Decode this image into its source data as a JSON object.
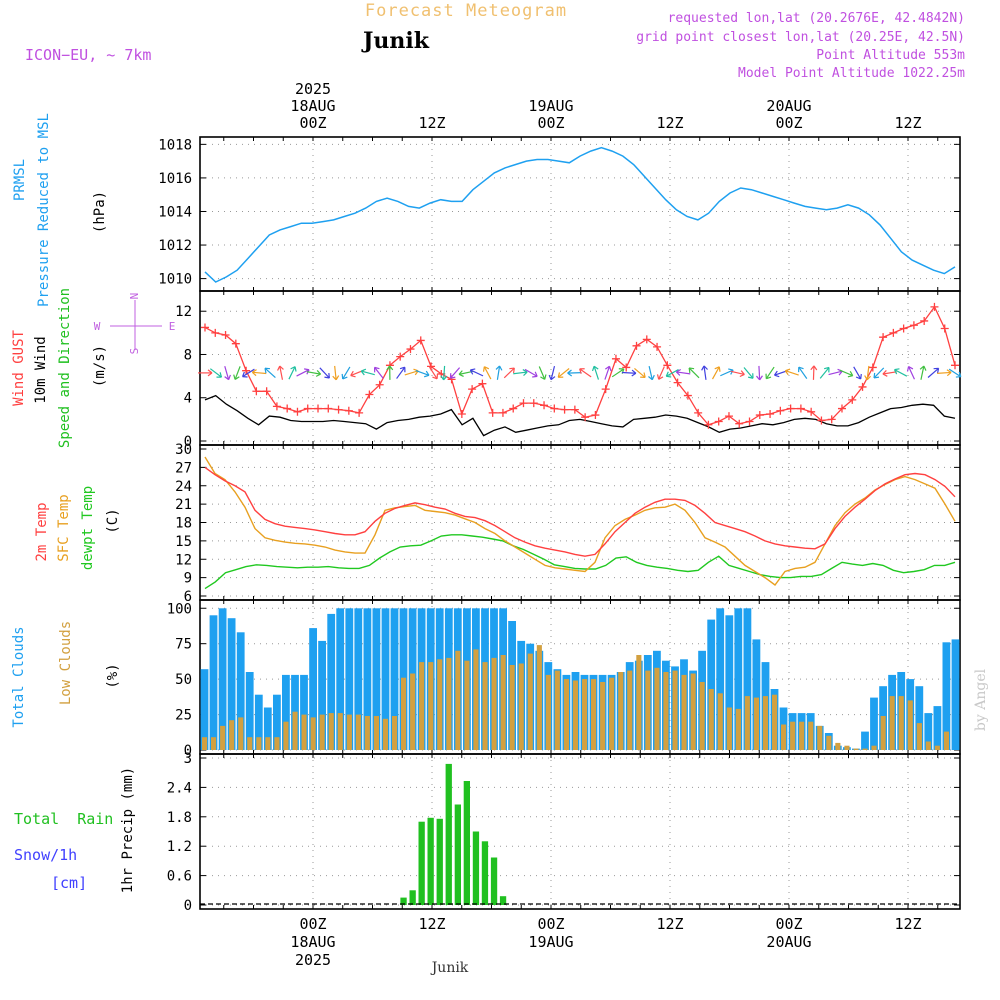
{
  "header": {
    "title": "Forecast Meteogram",
    "location": "Junik",
    "model": "ICON−EU, ~ 7km",
    "requested": "requested lon,lat (20.2676E, 42.4842N)",
    "grid": "grid point closest lon,lat (20.25E, 42.5N)",
    "altitude": "Point Altitude 553m",
    "model_altitude": "Model Point Altitude 1022.25m",
    "footer_location": "Junik",
    "watermark": "by Angel"
  },
  "time_axis": {
    "start": "2025-08-17T03:00Z",
    "end": "2025-08-20T18:00Z",
    "step_hours": 1,
    "top_labels": [
      {
        "t": 21,
        "lines": [
          "2025",
          "18AUG",
          "00Z"
        ]
      },
      {
        "t": 33,
        "lines": [
          "12Z"
        ]
      },
      {
        "t": 45,
        "lines": [
          "19AUG",
          "00Z"
        ]
      },
      {
        "t": 57,
        "lines": [
          "12Z"
        ]
      },
      {
        "t": 69,
        "lines": [
          "20AUG",
          "00Z"
        ]
      },
      {
        "t": 81,
        "lines": [
          "12Z"
        ]
      }
    ],
    "bottom_labels": [
      {
        "t": 21,
        "lines": [
          "00Z",
          "18AUG",
          "2025"
        ]
      },
      {
        "t": 33,
        "lines": [
          "12Z"
        ]
      },
      {
        "t": 45,
        "lines": [
          "00Z",
          "19AUG"
        ]
      },
      {
        "t": 57,
        "lines": [
          "12Z"
        ]
      },
      {
        "t": 69,
        "lines": [
          "00Z",
          "20AUG"
        ]
      },
      {
        "t": 81,
        "lines": [
          "12Z"
        ]
      }
    ]
  },
  "colors": {
    "pressure": "#1ea0f0",
    "gust": "#ff4040",
    "wind": "#000000",
    "temp": "#ff4040",
    "sfc": "#e8a020",
    "dew": "#20c820",
    "total_clouds": "#1ea0f0",
    "low_clouds": "#d2a040",
    "rain": "#20c020",
    "snow": "#4040ff",
    "header_orange": "#f0c070",
    "purple": "#c050e0",
    "compass": "#c060e0"
  },
  "chart_data": [
    {
      "type": "line",
      "panel": "pressure",
      "ylabel_lines": [
        {
          "text": "PRMSL",
          "color": "#1ea0f0"
        },
        {
          "text": "Pressure Reduced to MSL",
          "color": "#1ea0f0"
        }
      ],
      "unit": "(hPa)",
      "ylim": [
        1009.5,
        1018.2
      ],
      "yticks": [
        1010,
        1012,
        1014,
        1016,
        1018
      ],
      "grid": true,
      "series": [
        {
          "values": [
            1010.4,
            1009.8,
            1010.1,
            1010.5,
            1011.2,
            1011.9,
            1012.6,
            1012.9,
            1013.1,
            1013.3,
            1013.3,
            1013.4,
            1013.5,
            1013.7,
            1013.9,
            1014.2,
            1014.6,
            1014.8,
            1014.6,
            1014.3,
            1014.2,
            1014.5,
            1014.7,
            1014.6,
            1014.6,
            1015.3,
            1015.8,
            1016.3,
            1016.6,
            1016.8,
            1017.0,
            1017.1,
            1017.1,
            1017.0,
            1016.9,
            1017.3,
            1017.6,
            1017.8,
            1017.6,
            1017.3,
            1016.8,
            1016.1,
            1015.4,
            1014.7,
            1014.1,
            1013.7,
            1013.5,
            1013.9,
            1014.6,
            1015.1,
            1015.4,
            1015.3,
            1015.1,
            1014.9,
            1014.7,
            1014.5,
            1014.3,
            1014.2,
            1014.1,
            1014.2,
            1014.4,
            1014.2,
            1013.8,
            1013.2,
            1012.4,
            1011.6,
            1011.1,
            1010.8,
            1010.5,
            1010.3,
            1010.7
          ]
        }
      ]
    },
    {
      "type": "line",
      "panel": "wind",
      "ylabel_lines": [
        {
          "text": "Wind GUST",
          "color": "#ff4040"
        },
        {
          "text": "10m Wind",
          "color": "#000000"
        },
        {
          "text": "Speed and Direction",
          "color": "#20c020"
        }
      ],
      "unit": "(m/s)",
      "compass": {
        "n": "N",
        "s": "S",
        "e": "E",
        "w": "W"
      },
      "ylim": [
        0,
        13.5
      ],
      "yticks": [
        0,
        4,
        8,
        12
      ],
      "grid": true,
      "series": [
        {
          "name": "gust",
          "values": [
            10.5,
            10.0,
            9.8,
            9.0,
            6.5,
            4.6,
            4.6,
            3.2,
            3.0,
            2.7,
            3.0,
            3.0,
            3.0,
            2.9,
            2.8,
            2.6,
            4.3,
            5.2,
            7.0,
            7.8,
            8.5,
            9.3,
            6.9,
            6.2,
            5.7,
            2.5,
            4.8,
            5.3,
            2.6,
            2.6,
            3.0,
            3.5,
            3.5,
            3.3,
            3.0,
            2.9,
            2.9,
            2.2,
            2.4,
            4.8,
            7.6,
            6.8,
            8.8,
            9.4,
            8.7,
            7.0,
            5.4,
            4.2,
            2.6,
            1.5,
            1.8,
            2.3,
            1.6,
            1.8,
            2.4,
            2.5,
            2.8,
            3.0,
            3.0,
            2.7,
            1.9,
            2.0,
            3.0,
            3.8,
            5.0,
            6.8,
            9.6,
            10.0,
            10.4,
            10.7,
            11.1,
            12.4,
            10.4,
            7.0
          ]
        },
        {
          "name": "wind",
          "values": [
            3.8,
            4.2,
            3.4,
            2.8,
            2.1,
            1.5,
            2.3,
            2.2,
            1.9,
            1.8,
            1.8,
            1.8,
            1.9,
            1.8,
            1.7,
            1.6,
            1.1,
            1.7,
            1.9,
            2.0,
            2.2,
            2.3,
            2.5,
            2.9,
            1.5,
            2.1,
            0.5,
            1.0,
            1.3,
            0.8,
            1.0,
            1.2,
            1.4,
            1.5,
            1.9,
            2.0,
            1.8,
            1.6,
            1.4,
            1.3,
            2.0,
            2.1,
            2.2,
            2.4,
            2.3,
            2.1,
            1.7,
            1.3,
            0.8,
            1.1,
            1.2,
            1.4,
            1.6,
            1.5,
            1.7,
            2.0,
            2.1,
            2.0,
            1.6,
            1.4,
            1.4,
            1.7,
            2.2,
            2.6,
            3.0,
            3.1,
            3.3,
            3.4,
            3.3,
            2.3,
            2.1
          ]
        }
      ]
    },
    {
      "type": "line",
      "panel": "temperature",
      "ylabel_lines": [
        {
          "text": "2m Temp",
          "color": "#ff4040"
        },
        {
          "text": "SFC Temp",
          "color": "#e8a020"
        },
        {
          "text": "dewpt Temp",
          "color": "#20c820"
        }
      ],
      "unit": "(C)",
      "ylim": [
        6,
        30
      ],
      "yticks": [
        6,
        9,
        12,
        15,
        18,
        21,
        24,
        27,
        30
      ],
      "grid": true,
      "series": [
        {
          "name": "2m Temp",
          "values": [
            27.0,
            25.8,
            24.8,
            24.0,
            23.0,
            20.0,
            18.5,
            17.8,
            17.4,
            17.2,
            17.0,
            16.8,
            16.5,
            16.2,
            16.0,
            16.0,
            16.5,
            18.2,
            19.5,
            20.3,
            20.8,
            21.2,
            20.9,
            20.5,
            20.2,
            19.5,
            19.0,
            18.8,
            18.3,
            17.5,
            16.5,
            15.5,
            14.8,
            14.2,
            13.8,
            13.5,
            13.2,
            12.8,
            12.5,
            12.8,
            14.5,
            16.5,
            18.0,
            19.5,
            20.5,
            21.3,
            21.8,
            21.8,
            21.6,
            20.8,
            19.5,
            18.0,
            17.5,
            17.0,
            16.5,
            15.8,
            15.0,
            14.5,
            14.2,
            14.0,
            13.8,
            13.7,
            14.5,
            17.0,
            19.0,
            20.5,
            21.8,
            23.2,
            24.3,
            25.1,
            25.8,
            26.0,
            25.8,
            25.0,
            23.9,
            22.2
          ]
        },
        {
          "name": "SFC Temp",
          "values": [
            28.7,
            26.0,
            25.0,
            23.0,
            20.5,
            17.0,
            15.5,
            15.1,
            14.8,
            14.6,
            14.5,
            14.3,
            14.0,
            13.5,
            13.2,
            13.0,
            13.0,
            16.0,
            20.0,
            20.4,
            20.6,
            20.8,
            20.0,
            19.8,
            19.6,
            19.2,
            18.6,
            18.0,
            17.0,
            16.2,
            15.0,
            14.0,
            13.0,
            12.0,
            11.0,
            10.6,
            10.4,
            10.2,
            10.0,
            11.5,
            15.5,
            17.5,
            18.5,
            19.2,
            20.0,
            20.4,
            20.5,
            21.0,
            20.0,
            18.0,
            15.5,
            14.8,
            14.0,
            12.5,
            11.0,
            10.0,
            9.0,
            7.8,
            10.0,
            10.5,
            10.7,
            11.5,
            14.5,
            17.5,
            19.6,
            21.0,
            22.0,
            23.3,
            24.2,
            25.0,
            25.5,
            25.0,
            24.3,
            23.6,
            21.0,
            18.2
          ]
        },
        {
          "name": "dewpt Temp",
          "values": [
            7.2,
            8.3,
            9.8,
            10.3,
            10.8,
            11.1,
            11.0,
            10.8,
            10.7,
            10.6,
            10.7,
            10.7,
            10.8,
            10.6,
            10.5,
            10.5,
            11.0,
            12.2,
            13.2,
            14.0,
            14.2,
            14.3,
            15.0,
            15.8,
            16.0,
            16.0,
            15.8,
            15.6,
            15.3,
            15.0,
            14.2,
            13.6,
            12.8,
            12.0,
            11.1,
            10.8,
            10.5,
            10.4,
            10.4,
            11.0,
            12.2,
            12.4,
            11.5,
            11.0,
            10.7,
            10.5,
            10.2,
            10.0,
            10.2,
            11.5,
            12.5,
            11.0,
            10.5,
            10.0,
            9.5,
            9.2,
            9.0,
            9.0,
            9.2,
            9.2,
            9.5,
            10.5,
            11.5,
            11.2,
            11.0,
            11.3,
            11.0,
            10.2,
            9.8,
            10.0,
            10.3,
            11.0,
            11.0,
            11.5
          ]
        }
      ]
    },
    {
      "type": "bar",
      "panel": "clouds",
      "ylabel_lines": [
        {
          "text": "Total Clouds",
          "color": "#1ea0f0"
        },
        {
          "text": "Low Clouds",
          "color": "#d2a040"
        }
      ],
      "unit": "(%)",
      "ylim": [
        0,
        103
      ],
      "yticks": [
        0,
        25,
        50,
        75,
        100
      ],
      "grid": true,
      "series": [
        {
          "name": "Total Clouds",
          "values": [
            57,
            95,
            100,
            93,
            83,
            55,
            39,
            30,
            39,
            53,
            53,
            53,
            86,
            77,
            96,
            100,
            100,
            100,
            100,
            100,
            100,
            100,
            100,
            100,
            100,
            100,
            100,
            100,
            100,
            100,
            100,
            100,
            100,
            100,
            91,
            77,
            75,
            70,
            62,
            57,
            53,
            55,
            53,
            53,
            53,
            53,
            55,
            62,
            63,
            67,
            70,
            63,
            59,
            64,
            56,
            70,
            92,
            100,
            95,
            100,
            100,
            78,
            62,
            43,
            30,
            26,
            26,
            26,
            17,
            12,
            3,
            2,
            1,
            13,
            37,
            45,
            53,
            55,
            50,
            45,
            26,
            31,
            76,
            78
          ]
        },
        {
          "name": "Low Clouds",
          "values": [
            9,
            9,
            17,
            21,
            23,
            9,
            9,
            9,
            9,
            20,
            27,
            25,
            23,
            25,
            26,
            26,
            25,
            25,
            24,
            24,
            22,
            24,
            51,
            54,
            62,
            62,
            64,
            65,
            70,
            63,
            71,
            62,
            65,
            67,
            60,
            61,
            68,
            74,
            53,
            56,
            50,
            49,
            50,
            50,
            48,
            51,
            55,
            56,
            67,
            56,
            58,
            55,
            56,
            53,
            54,
            48,
            43,
            40,
            30,
            29,
            38,
            37,
            38,
            39,
            18,
            20,
            20,
            20,
            17,
            10,
            5,
            3,
            1,
            1,
            3,
            24,
            38,
            38,
            35,
            19,
            6,
            3,
            13
          ]
        }
      ]
    },
    {
      "type": "bar",
      "panel": "precip",
      "ylabel_lines": [
        {
          "text": "Total  Rain",
          "color": "#20c020"
        },
        {
          "text": "Snow/1h",
          "color": "#4040ff"
        },
        {
          "text": "[cm]",
          "color": "#4040ff"
        }
      ],
      "unit": "1hr Precip (mm)",
      "ylim": [
        0,
        3.0
      ],
      "yticks": [
        0,
        0.6,
        1.2,
        1.8,
        2.4,
        3
      ],
      "grid": true,
      "series": [
        {
          "name": "Total Rain",
          "values": [
            0,
            0,
            0,
            0,
            0,
            0,
            0,
            0,
            0,
            0,
            0,
            0,
            0,
            0,
            0,
            0,
            0,
            0,
            0,
            0,
            0,
            0,
            0.15,
            0.3,
            1.7,
            1.78,
            1.76,
            2.88,
            2.05,
            2.53,
            1.5,
            1.3,
            0.97,
            0.18,
            0,
            0,
            0,
            0,
            0,
            0,
            0,
            0,
            0,
            0,
            0,
            0,
            0,
            0,
            0,
            0,
            0,
            0,
            0,
            0,
            0,
            0,
            0,
            0,
            0,
            0,
            0,
            0,
            0,
            0,
            0,
            0,
            0,
            0,
            0,
            0,
            0,
            0,
            0,
            0,
            0,
            0,
            0,
            0,
            0,
            0,
            0,
            0,
            0,
            0
          ]
        },
        {
          "name": "Snow/1h",
          "values": []
        }
      ]
    }
  ]
}
